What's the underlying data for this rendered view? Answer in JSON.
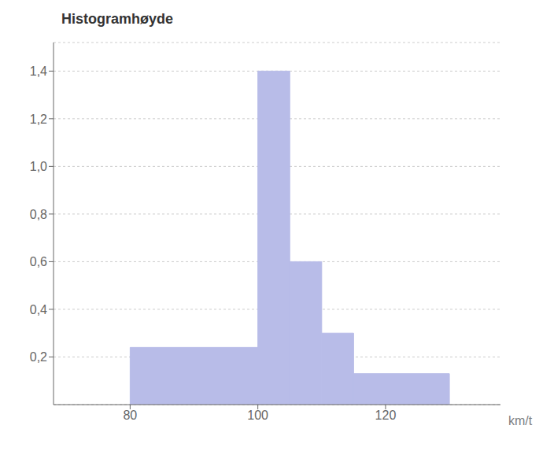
{
  "chart_data": {
    "type": "histogram",
    "title": "Histogramhøyde",
    "x_label": "km/t",
    "bins": [
      80,
      100,
      105,
      110,
      115,
      130
    ],
    "values": [
      0.24,
      1.4,
      0.6,
      0.3,
      0.13
    ],
    "color": "#b8bce8",
    "xlim": [
      68,
      138
    ],
    "xticks": [
      80,
      100,
      120
    ],
    "ylim": [
      0,
      1.52
    ],
    "yticks": [
      {
        "value": 0.2,
        "label": "0,2"
      },
      {
        "value": 0.4,
        "label": "0,4"
      },
      {
        "value": 0.6,
        "label": "0,6"
      },
      {
        "value": 0.8,
        "label": "0,8"
      },
      {
        "value": 1.0,
        "label": "1,0"
      },
      {
        "value": 1.2,
        "label": "1,2"
      },
      {
        "value": 1.4,
        "label": "1,4"
      }
    ],
    "grid": true
  }
}
